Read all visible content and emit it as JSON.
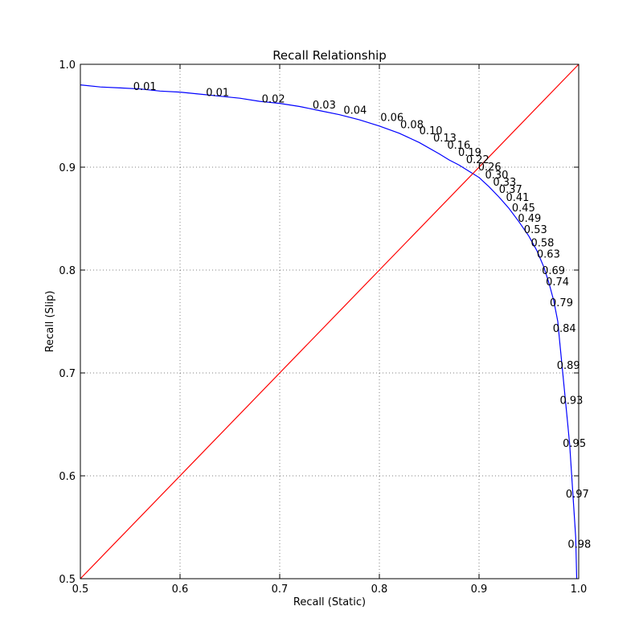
{
  "chart_data": {
    "type": "line",
    "title": "Recall Relationship",
    "xlabel": "Recall (Static)",
    "ylabel": "Recall (Slip)",
    "xlim": [
      0.5,
      1.0
    ],
    "ylim": [
      0.5,
      1.0
    ],
    "xticks": [
      "0.5",
      "0.6",
      "0.7",
      "0.8",
      "0.9",
      "1.0"
    ],
    "yticks": [
      "0.5",
      "0.6",
      "0.7",
      "0.8",
      "0.9",
      "1.0"
    ],
    "grid": true,
    "series": [
      {
        "color": "#0000ff",
        "x": [
          0.5,
          0.52,
          0.54,
          0.56,
          0.58,
          0.6,
          0.62,
          0.64,
          0.66,
          0.68,
          0.7,
          0.72,
          0.74,
          0.76,
          0.78,
          0.8,
          0.82,
          0.84,
          0.86,
          0.87,
          0.88,
          0.89,
          0.9,
          0.91,
          0.92,
          0.93,
          0.94,
          0.95,
          0.958,
          0.965,
          0.97,
          0.975,
          0.979,
          0.981,
          0.983,
          0.985,
          0.987,
          0.989,
          0.991,
          0.993,
          0.995,
          0.997,
          0.998
        ],
        "y": [
          0.98,
          0.978,
          0.977,
          0.976,
          0.974,
          0.973,
          0.971,
          0.969,
          0.967,
          0.964,
          0.962,
          0.959,
          0.955,
          0.951,
          0.946,
          0.94,
          0.933,
          0.924,
          0.913,
          0.907,
          0.902,
          0.896,
          0.89,
          0.881,
          0.871,
          0.86,
          0.847,
          0.833,
          0.819,
          0.803,
          0.788,
          0.77,
          0.75,
          0.73,
          0.71,
          0.69,
          0.67,
          0.65,
          0.63,
          0.6,
          0.57,
          0.54,
          0.5
        ]
      },
      {
        "color": "#ff0000",
        "x": [
          0.5,
          1.0
        ],
        "y": [
          0.5,
          1.0
        ]
      }
    ],
    "annotations": [
      {
        "text": "0.01",
        "x": 0.553,
        "y": 0.975
      },
      {
        "text": "0.01",
        "x": 0.626,
        "y": 0.969
      },
      {
        "text": "0.02",
        "x": 0.682,
        "y": 0.963
      },
      {
        "text": "0.03",
        "x": 0.733,
        "y": 0.957
      },
      {
        "text": "0.04",
        "x": 0.764,
        "y": 0.952
      },
      {
        "text": "0.06",
        "x": 0.801,
        "y": 0.945
      },
      {
        "text": "0.08",
        "x": 0.821,
        "y": 0.938
      },
      {
        "text": "0.10",
        "x": 0.84,
        "y": 0.932
      },
      {
        "text": "0.13",
        "x": 0.854,
        "y": 0.925
      },
      {
        "text": "0.16",
        "x": 0.868,
        "y": 0.918
      },
      {
        "text": "0.19",
        "x": 0.879,
        "y": 0.911
      },
      {
        "text": "0.22",
        "x": 0.887,
        "y": 0.904
      },
      {
        "text": "0.26",
        "x": 0.899,
        "y": 0.897
      },
      {
        "text": "0.30",
        "x": 0.906,
        "y": 0.889
      },
      {
        "text": "0.33",
        "x": 0.914,
        "y": 0.882
      },
      {
        "text": "0.37",
        "x": 0.92,
        "y": 0.875
      },
      {
        "text": "0.41",
        "x": 0.927,
        "y": 0.867
      },
      {
        "text": "0.45",
        "x": 0.933,
        "y": 0.857
      },
      {
        "text": "0.49",
        "x": 0.939,
        "y": 0.847
      },
      {
        "text": "0.53",
        "x": 0.945,
        "y": 0.836
      },
      {
        "text": "0.58",
        "x": 0.952,
        "y": 0.823
      },
      {
        "text": "0.63",
        "x": 0.958,
        "y": 0.812
      },
      {
        "text": "0.69",
        "x": 0.963,
        "y": 0.796
      },
      {
        "text": "0.74",
        "x": 0.967,
        "y": 0.785
      },
      {
        "text": "0.79",
        "x": 0.971,
        "y": 0.765
      },
      {
        "text": "0.84",
        "x": 0.974,
        "y": 0.74
      },
      {
        "text": "0.89",
        "x": 0.978,
        "y": 0.704
      },
      {
        "text": "0.93",
        "x": 0.981,
        "y": 0.67
      },
      {
        "text": "0.95",
        "x": 0.984,
        "y": 0.628
      },
      {
        "text": "0.97",
        "x": 0.987,
        "y": 0.579
      },
      {
        "text": "0.98",
        "x": 0.989,
        "y": 0.53
      }
    ]
  }
}
